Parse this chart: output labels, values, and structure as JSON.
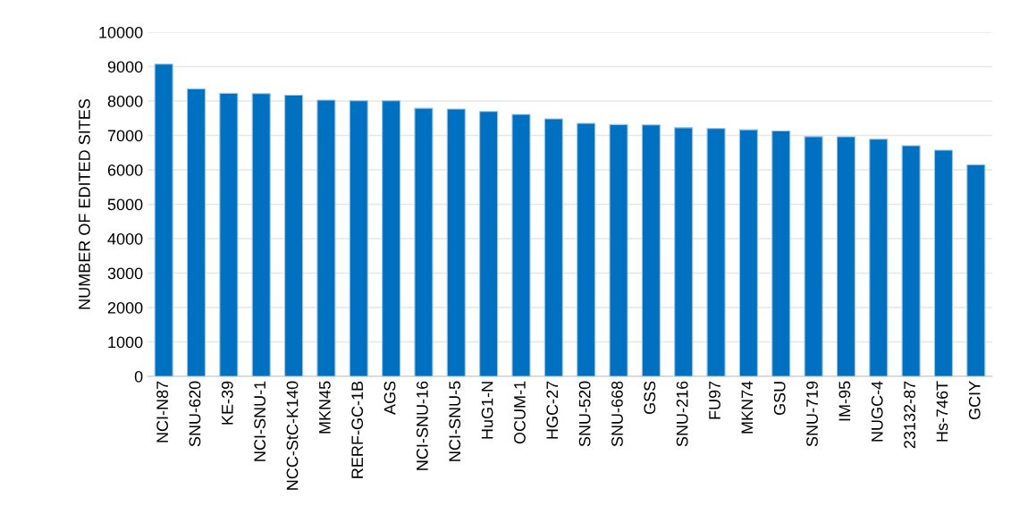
{
  "chart_data": {
    "type": "bar",
    "ylabel": "NUMBER OF EDITED SITES",
    "categories": [
      "NCI-N87",
      "SNU-620",
      "KE-39",
      "NCI-SNU-1",
      "NCC-StC-K140",
      "MKN45",
      "RERF-GC-1B",
      "AGS",
      "NCI-SNU-16",
      "NCI-SNU-5",
      "HuG1-N",
      "OCUM-1",
      "HGC-27",
      "SNU-520",
      "SNU-668",
      "GSS",
      "SNU-216",
      "FU97",
      "MKN74",
      "GSU",
      "SNU-719",
      "IM-95",
      "NUGC-4",
      "23132-87",
      "Hs-746T",
      "GCIY"
    ],
    "values": [
      9070,
      8355,
      8225,
      8215,
      8170,
      8025,
      8010,
      8010,
      7790,
      7765,
      7695,
      7610,
      7480,
      7350,
      7315,
      7305,
      7225,
      7200,
      7165,
      7130,
      6965,
      6960,
      6890,
      6700,
      6570,
      6150
    ],
    "color": "#0070c0",
    "ylim": [
      0,
      10000
    ],
    "yticks": [
      0,
      1000,
      2000,
      3000,
      4000,
      5000,
      6000,
      7000,
      8000,
      9000,
      10000
    ],
    "grid": "y",
    "legend": false
  }
}
